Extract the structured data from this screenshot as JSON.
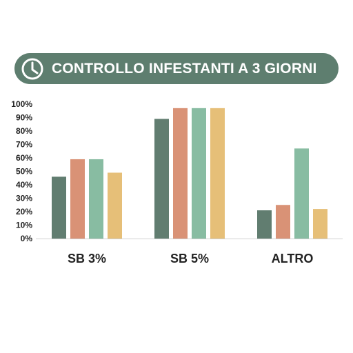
{
  "title": "CONTROLLO INFESTANTI A 3 GIORNI",
  "title_icon": "clock-icon",
  "colors": {
    "title_bg": "#5e7e6f",
    "axis": "#cfcfcf",
    "series": [
      "#617d70",
      "#d99276",
      "#88bca2",
      "#e6bf78"
    ]
  },
  "chart_data": {
    "type": "bar",
    "title": "CONTROLLO INFESTANTI A 3 GIORNI",
    "categories": [
      "SB 3%",
      "SB 5%",
      "ALTRO"
    ],
    "series": [
      {
        "values": [
          46,
          89,
          21
        ]
      },
      {
        "values": [
          59,
          97,
          25
        ]
      },
      {
        "values": [
          59,
          97,
          67
        ]
      },
      {
        "values": [
          49,
          97,
          22
        ]
      }
    ],
    "ylim": [
      0,
      100
    ],
    "yticks": [
      0,
      10,
      20,
      30,
      40,
      50,
      60,
      70,
      80,
      90,
      100
    ],
    "ytick_labels": [
      "0%",
      "10%",
      "20%",
      "30%",
      "40%",
      "50%",
      "60%",
      "70%",
      "80%",
      "90%",
      "100%"
    ],
    "xlabel": "",
    "ylabel": "",
    "grid": false,
    "legend": "none"
  }
}
